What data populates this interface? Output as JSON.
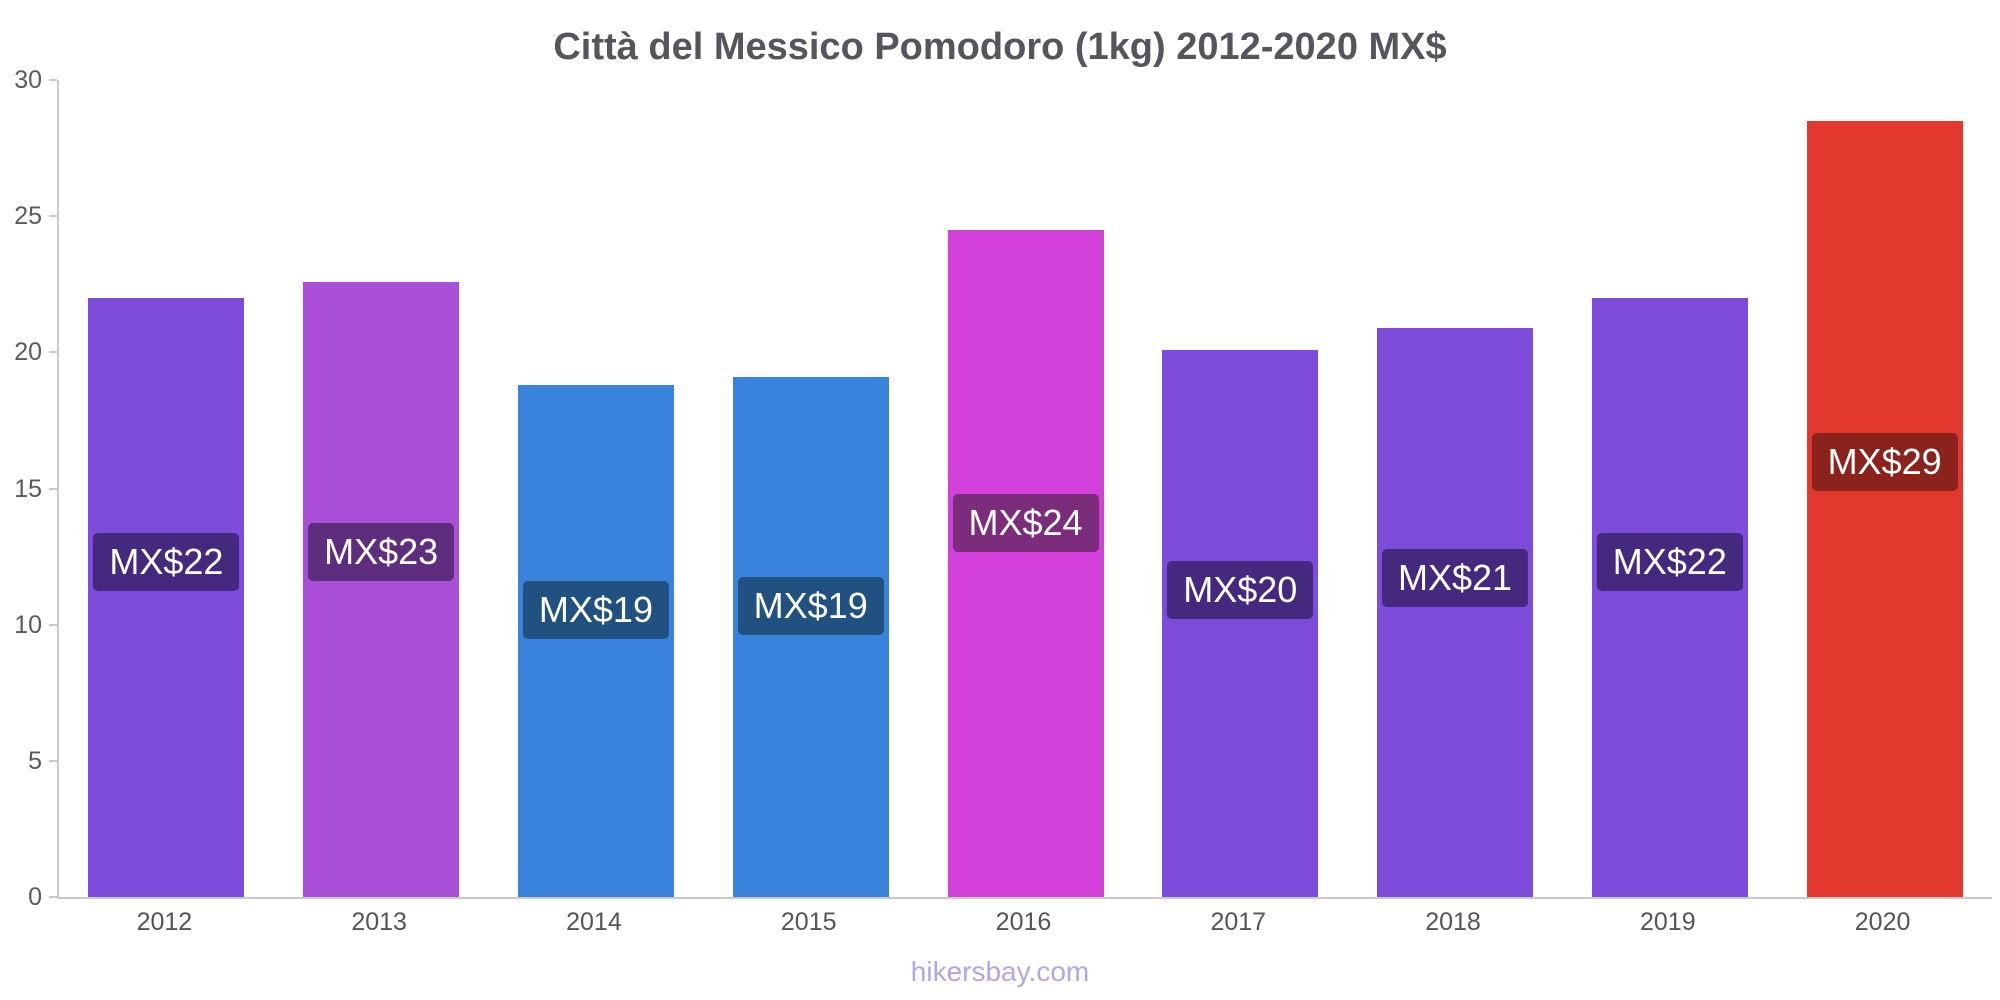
{
  "title": "Città del Messico Pomodoro (1kg) 2012-2020 MX$",
  "footer": "hikersbay.com",
  "chart_data": {
    "type": "bar",
    "title": "Città del Messico Pomodoro (1kg) 2012-2020 MX$",
    "categories": [
      "2012",
      "2013",
      "2014",
      "2015",
      "2016",
      "2017",
      "2018",
      "2019",
      "2020"
    ],
    "values": [
      22.0,
      22.6,
      18.8,
      19.1,
      24.5,
      20.1,
      20.9,
      22.0,
      28.5
    ],
    "bar_labels": [
      "MX$22",
      "MX$23",
      "MX$19",
      "MX$19",
      "MX$24",
      "MX$20",
      "MX$21",
      "MX$22",
      "MX$29"
    ],
    "bar_colors": [
      "#7d4cdb",
      "#aa4fd7",
      "#3a83dc",
      "#3a83dc",
      "#d23fd9",
      "#7d4cdb",
      "#7d4cdb",
      "#7d4cdb",
      "#e3382e"
    ],
    "label_bg_colors": [
      "#45297e",
      "#5e2d7e",
      "#215180",
      "#215180",
      "#7b2c7b",
      "#45297e",
      "#45297e",
      "#45297e",
      "#8c221c"
    ],
    "xlabel": "",
    "ylabel": "",
    "ylim": [
      0,
      30
    ],
    "yticks": [
      0,
      5,
      10,
      15,
      20,
      25,
      30
    ],
    "grid": false,
    "legend": false
  }
}
